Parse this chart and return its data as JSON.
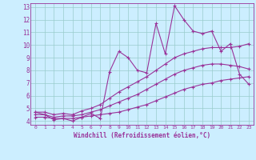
{
  "xlabel": "Windchill (Refroidissement éolien,°C)",
  "bg_color": "#cceeff",
  "line_color": "#993399",
  "grid_color": "#99cccc",
  "tick_color": "#993399",
  "xlim": [
    -0.5,
    23.5
  ],
  "ylim": [
    3.7,
    13.3
  ],
  "yticks": [
    4,
    5,
    6,
    7,
    8,
    9,
    10,
    11,
    12,
    13
  ],
  "xticks": [
    0,
    1,
    2,
    3,
    4,
    5,
    6,
    7,
    8,
    9,
    10,
    11,
    12,
    13,
    14,
    15,
    16,
    17,
    18,
    19,
    20,
    21,
    22,
    23
  ],
  "hours": [
    0,
    1,
    2,
    3,
    4,
    5,
    6,
    7,
    8,
    9,
    10,
    11,
    12,
    13,
    14,
    15,
    16,
    17,
    18,
    19,
    20,
    21,
    22,
    23
  ],
  "temp": [
    4.7,
    4.5,
    4.1,
    4.2,
    4.0,
    4.3,
    4.6,
    4.2,
    7.9,
    9.5,
    9.0,
    8.0,
    7.8,
    11.7,
    9.3,
    13.1,
    12.0,
    11.1,
    10.9,
    11.1,
    9.5,
    10.1,
    7.7,
    6.9
  ],
  "max_l": [
    4.7,
    4.7,
    4.5,
    4.6,
    4.5,
    4.8,
    5.0,
    5.3,
    5.8,
    6.3,
    6.7,
    7.1,
    7.5,
    8.0,
    8.5,
    9.0,
    9.3,
    9.5,
    9.7,
    9.8,
    9.8,
    9.8,
    9.9,
    10.1
  ],
  "avg_l": [
    4.5,
    4.5,
    4.3,
    4.4,
    4.4,
    4.5,
    4.7,
    4.9,
    5.2,
    5.5,
    5.8,
    6.1,
    6.5,
    6.9,
    7.3,
    7.7,
    8.0,
    8.2,
    8.4,
    8.5,
    8.5,
    8.4,
    8.3,
    8.1
  ],
  "min_l": [
    4.3,
    4.3,
    4.2,
    4.2,
    4.2,
    4.3,
    4.4,
    4.5,
    4.6,
    4.7,
    4.9,
    5.1,
    5.3,
    5.6,
    5.9,
    6.2,
    6.5,
    6.7,
    6.9,
    7.0,
    7.2,
    7.3,
    7.4,
    7.5
  ]
}
